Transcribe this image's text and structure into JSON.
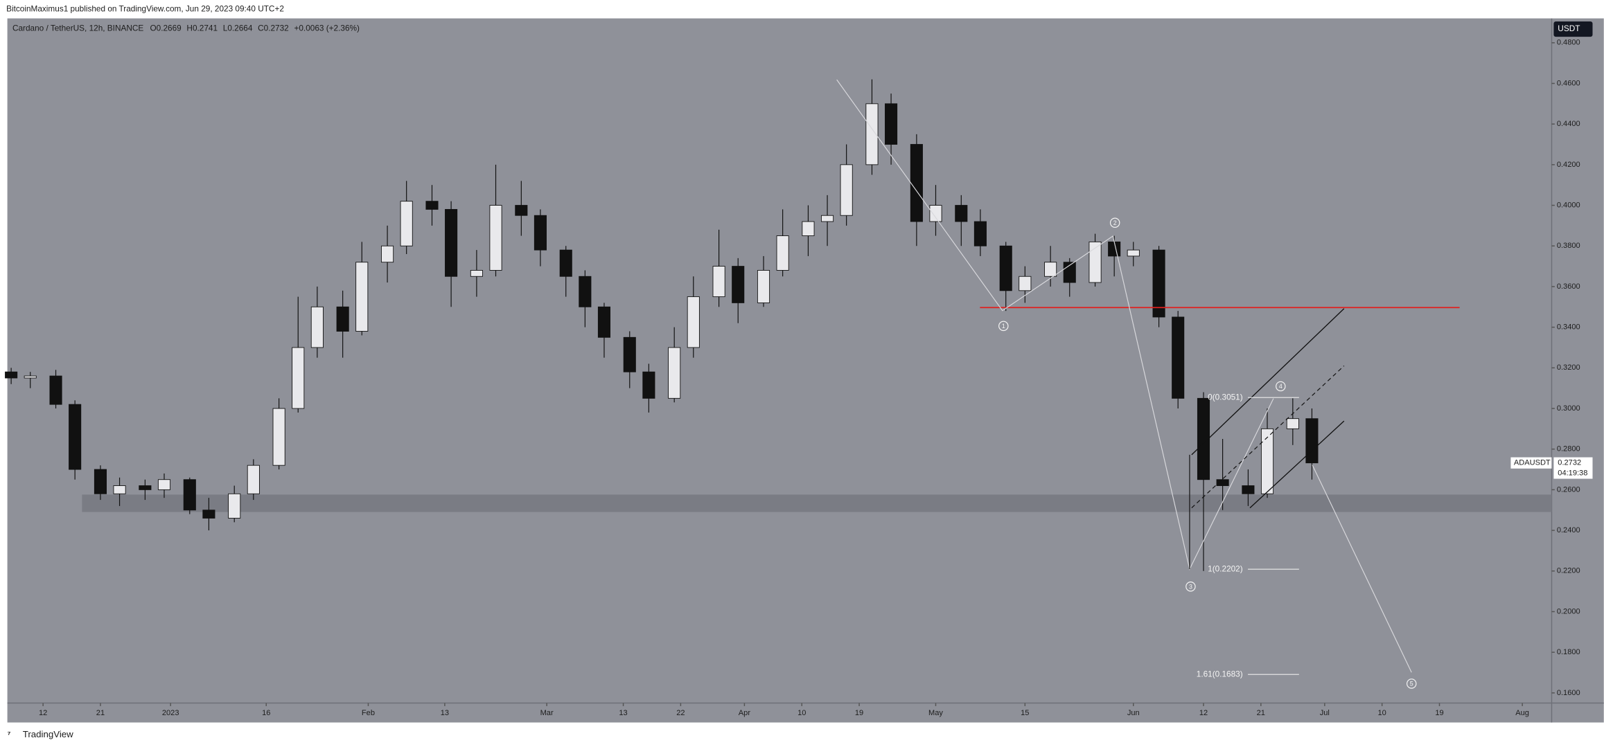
{
  "header": {
    "publisher": "BitcoinMaximus1 published on TradingView.com, Jun 29, 2023 09:40 UTC+2",
    "brand": "TradingView"
  },
  "chart_data": {
    "type": "candlestick",
    "title": "Cardano / TetherUS, 12h, BINANCE",
    "ohlc": {
      "o_label": "O",
      "open": "0.2669",
      "h_label": "H",
      "high": "0.2741",
      "l_label": "L",
      "low": "0.2664",
      "c_label": "C",
      "close": "0.2732",
      "change": "+0.0063 (+2.36%)"
    },
    "currency": "USDT",
    "symbol": "ADAUSDT",
    "last_price": "0.2732",
    "countdown": "04:19:38",
    "x": [
      -5,
      -2,
      2,
      5,
      9,
      12,
      16,
      19,
      23,
      26,
      30,
      33,
      37,
      40,
      43,
      47,
      50,
      54,
      57,
      61,
      64,
      68,
      71,
      75,
      78,
      82,
      85,
      88,
      92,
      95,
      99,
      102,
      106,
      109,
      113,
      116,
      120,
      123,
      126,
      130,
      133,
      137,
      140,
      144,
      147,
      151,
      154,
      158,
      161,
      165,
      168,
      171,
      175,
      178,
      182,
      185,
      189,
      192,
      196,
      199
    ],
    "open": [
      0.318,
      0.315,
      0.316,
      0.302,
      0.27,
      0.258,
      0.262,
      0.26,
      0.265,
      0.25,
      0.246,
      0.258,
      0.272,
      0.3,
      0.33,
      0.35,
      0.338,
      0.372,
      0.38,
      0.402,
      0.398,
      0.365,
      0.368,
      0.4,
      0.395,
      0.378,
      0.365,
      0.35,
      0.335,
      0.318,
      0.305,
      0.33,
      0.355,
      0.37,
      0.352,
      0.368,
      0.385,
      0.392,
      0.395,
      0.42,
      0.45,
      0.43,
      0.392,
      0.4,
      0.392,
      0.38,
      0.358,
      0.365,
      0.372,
      0.362,
      0.382,
      0.375,
      0.378,
      0.345,
      0.305,
      0.265,
      0.262,
      0.258,
      0.29,
      0.295
    ],
    "high": [
      0.32,
      0.318,
      0.319,
      0.304,
      0.272,
      0.266,
      0.265,
      0.268,
      0.266,
      0.256,
      0.262,
      0.275,
      0.305,
      0.355,
      0.36,
      0.358,
      0.382,
      0.39,
      0.412,
      0.41,
      0.402,
      0.378,
      0.42,
      0.412,
      0.398,
      0.38,
      0.368,
      0.352,
      0.338,
      0.322,
      0.34,
      0.365,
      0.388,
      0.374,
      0.375,
      0.398,
      0.4,
      0.405,
      0.43,
      0.462,
      0.455,
      0.435,
      0.41,
      0.405,
      0.398,
      0.382,
      0.37,
      0.38,
      0.374,
      0.386,
      0.385,
      0.382,
      0.38,
      0.348,
      0.308,
      0.285,
      0.27,
      0.3,
      0.305,
      0.3
    ],
    "low": [
      0.312,
      0.31,
      0.3,
      0.265,
      0.255,
      0.252,
      0.255,
      0.256,
      0.248,
      0.24,
      0.244,
      0.255,
      0.27,
      0.298,
      0.325,
      0.325,
      0.336,
      0.362,
      0.376,
      0.39,
      0.35,
      0.355,
      0.365,
      0.385,
      0.37,
      0.355,
      0.34,
      0.325,
      0.31,
      0.298,
      0.303,
      0.325,
      0.35,
      0.342,
      0.35,
      0.365,
      0.375,
      0.38,
      0.39,
      0.415,
      0.42,
      0.38,
      0.385,
      0.38,
      0.375,
      0.348,
      0.352,
      0.36,
      0.355,
      0.36,
      0.365,
      0.37,
      0.34,
      0.3,
      0.22,
      0.25,
      0.252,
      0.256,
      0.282,
      0.265
    ],
    "close": [
      0.315,
      0.316,
      0.302,
      0.27,
      0.258,
      0.262,
      0.26,
      0.265,
      0.25,
      0.246,
      0.258,
      0.272,
      0.3,
      0.33,
      0.35,
      0.338,
      0.372,
      0.38,
      0.402,
      0.398,
      0.365,
      0.368,
      0.4,
      0.395,
      0.378,
      0.365,
      0.35,
      0.335,
      0.318,
      0.305,
      0.33,
      0.355,
      0.37,
      0.352,
      0.368,
      0.385,
      0.392,
      0.395,
      0.42,
      0.45,
      0.43,
      0.392,
      0.4,
      0.392,
      0.38,
      0.358,
      0.365,
      0.372,
      0.362,
      0.382,
      0.375,
      0.378,
      0.345,
      0.305,
      0.265,
      0.262,
      0.258,
      0.29,
      0.295,
      0.2732
    ],
    "up_color": "#e9e9ec",
    "down_color": "#111111",
    "xlim": [
      -5.6,
      236.6
    ],
    "xticks": [
      {
        "value": 0,
        "label": "12"
      },
      {
        "value": 9,
        "label": "21"
      },
      {
        "value": 20,
        "label": "2023"
      },
      {
        "value": 35,
        "label": "16"
      },
      {
        "value": 51,
        "label": "Feb"
      },
      {
        "value": 63,
        "label": "13"
      },
      {
        "value": 79,
        "label": "Mar"
      },
      {
        "value": 91,
        "label": "13"
      },
      {
        "value": 100,
        "label": "22"
      },
      {
        "value": 110,
        "label": "Apr"
      },
      {
        "value": 119,
        "label": "10"
      },
      {
        "value": 128,
        "label": "19"
      },
      {
        "value": 140,
        "label": "May"
      },
      {
        "value": 154,
        "label": "15"
      },
      {
        "value": 171,
        "label": "Jun"
      },
      {
        "value": 182,
        "label": "12"
      },
      {
        "value": 191,
        "label": "21"
      },
      {
        "value": 201,
        "label": "Jul"
      },
      {
        "value": 210,
        "label": "10"
      },
      {
        "value": 219,
        "label": "19"
      },
      {
        "value": 232,
        "label": "Aug"
      }
    ],
    "ylim": [
      0.155,
      0.492
    ],
    "yticks": [
      {
        "value": 0.16,
        "label": "0.1600"
      },
      {
        "value": 0.18,
        "label": "0.1800"
      },
      {
        "value": 0.2,
        "label": "0.2000"
      },
      {
        "value": 0.22,
        "label": "0.2200"
      },
      {
        "value": 0.24,
        "label": "0.2400"
      },
      {
        "value": 0.26,
        "label": "0.2600"
      },
      {
        "value": 0.28,
        "label": "0.2800"
      },
      {
        "value": 0.3,
        "label": "0.3000"
      },
      {
        "value": 0.32,
        "label": "0.3200"
      },
      {
        "value": 0.34,
        "label": "0.3400"
      },
      {
        "value": 0.36,
        "label": "0.3600"
      },
      {
        "value": 0.38,
        "label": "0.3800"
      },
      {
        "value": 0.4,
        "label": "0.4000"
      },
      {
        "value": 0.42,
        "label": "0.4200"
      },
      {
        "value": 0.44,
        "label": "0.4400"
      },
      {
        "value": 0.46,
        "label": "0.4600"
      },
      {
        "value": 0.48,
        "label": "0.4800"
      }
    ],
    "annotations": {
      "waves": [
        "1",
        "2",
        "3",
        "4",
        "5"
      ],
      "fib": [
        "0(0.3051)",
        "1(0.2202)",
        "1.61(0.1683)"
      ]
    }
  }
}
